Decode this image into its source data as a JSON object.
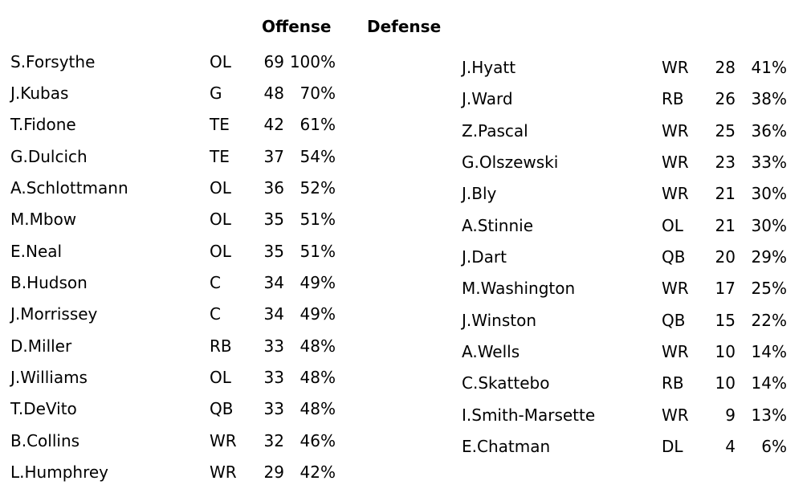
{
  "headers": {
    "offense": "Offense",
    "defense": "Defense"
  },
  "left_list": [
    {
      "name": "S.Forsythe",
      "pos": "OL",
      "snaps": "69",
      "pct": "100%"
    },
    {
      "name": "J.Kubas",
      "pos": "G",
      "snaps": "48",
      "pct": "70%"
    },
    {
      "name": "T.Fidone",
      "pos": "TE",
      "snaps": "42",
      "pct": "61%"
    },
    {
      "name": "G.Dulcich",
      "pos": "TE",
      "snaps": "37",
      "pct": "54%"
    },
    {
      "name": "A.Schlottmann",
      "pos": "OL",
      "snaps": "36",
      "pct": "52%"
    },
    {
      "name": "M.Mbow",
      "pos": "OL",
      "snaps": "35",
      "pct": "51%"
    },
    {
      "name": "E.Neal",
      "pos": "OL",
      "snaps": "35",
      "pct": "51%"
    },
    {
      "name": "B.Hudson",
      "pos": "C",
      "snaps": "34",
      "pct": "49%"
    },
    {
      "name": "J.Morrissey",
      "pos": "C",
      "snaps": "34",
      "pct": "49%"
    },
    {
      "name": "D.Miller",
      "pos": "RB",
      "snaps": "33",
      "pct": "48%"
    },
    {
      "name": "J.Williams",
      "pos": "OL",
      "snaps": "33",
      "pct": "48%"
    },
    {
      "name": "T.DeVito",
      "pos": "QB",
      "snaps": "33",
      "pct": "48%"
    },
    {
      "name": "B.Collins",
      "pos": "WR",
      "snaps": "32",
      "pct": "46%"
    },
    {
      "name": "L.Humphrey",
      "pos": "WR",
      "snaps": "29",
      "pct": "42%"
    }
  ],
  "right_list": [
    {
      "name": "J.Hyatt",
      "pos": "WR",
      "snaps": "28",
      "pct": "41%"
    },
    {
      "name": "J.Ward",
      "pos": "RB",
      "snaps": "26",
      "pct": "38%"
    },
    {
      "name": "Z.Pascal",
      "pos": "WR",
      "snaps": "25",
      "pct": "36%"
    },
    {
      "name": "G.Olszewski",
      "pos": "WR",
      "snaps": "23",
      "pct": "33%"
    },
    {
      "name": "J.Bly",
      "pos": "WR",
      "snaps": "21",
      "pct": "30%"
    },
    {
      "name": "A.Stinnie",
      "pos": "OL",
      "snaps": "21",
      "pct": "30%"
    },
    {
      "name": "J.Dart",
      "pos": "QB",
      "snaps": "20",
      "pct": "29%"
    },
    {
      "name": "M.Washington",
      "pos": "WR",
      "snaps": "17",
      "pct": "25%"
    },
    {
      "name": "J.Winston",
      "pos": "QB",
      "snaps": "15",
      "pct": "22%"
    },
    {
      "name": "A.Wells",
      "pos": "WR",
      "snaps": "10",
      "pct": "14%"
    },
    {
      "name": "C.Skattebo",
      "pos": "RB",
      "snaps": "10",
      "pct": "14%"
    },
    {
      "name": "I.Smith-Marsette",
      "pos": "WR",
      "snaps": "9",
      "pct": "13%"
    },
    {
      "name": "E.Chatman",
      "pos": "DL",
      "snaps": "4",
      "pct": "6%"
    }
  ]
}
